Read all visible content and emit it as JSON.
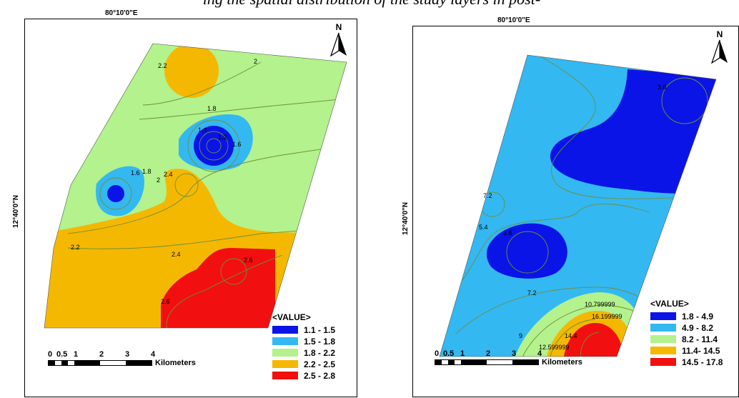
{
  "caption": "ing the spatial distribution of the study layers in post-",
  "maps": [
    {
      "top_coordinate": "80°10'0\"E",
      "side_coordinate": "12°40'0\"N",
      "north_label": "N",
      "legend": {
        "title": "<VALUE>",
        "classes": [
          {
            "label": "1.1 - 1.5",
            "color": "#0a14e6"
          },
          {
            "label": "1.5 - 1.8",
            "color": "#33b8f2"
          },
          {
            "label": "1.8 - 2.2",
            "color": "#b3f28c"
          },
          {
            "label": "2.2 - 2.5",
            "color": "#f5b800"
          },
          {
            "label": "2.5 - 2.8",
            "color": "#f20f0f"
          }
        ]
      },
      "contour_labels": [
        "2.2",
        "2",
        "1.8",
        "1.4",
        "1.2",
        "1.6",
        "1.6",
        "1.8",
        "2",
        "2.4",
        "2.2",
        "2.4",
        "2.6",
        "2.6"
      ],
      "scalebar": {
        "ticks": [
          "0",
          "0.5",
          "1",
          "2",
          "3",
          "4"
        ],
        "unit": "Kilometers"
      }
    },
    {
      "top_coordinate": "80°10'0\"E",
      "side_coordinate": "12°40'0\"N",
      "north_label": "N",
      "legend": {
        "title": "<VALUE>",
        "classes": [
          {
            "label": "1.8 - 4.9",
            "color": "#0a14e6"
          },
          {
            "label": "4.9 - 8.2",
            "color": "#33b8f2"
          },
          {
            "label": "8.2 - 11.4",
            "color": "#b3f28c"
          },
          {
            "label": "11.4- 14.5",
            "color": "#f5b800"
          },
          {
            "label": "14.5 - 17.8",
            "color": "#f20f0f"
          }
        ]
      },
      "contour_labels": [
        "3.6",
        "7.2",
        "5.4",
        "3.6",
        "7.2",
        "10.799999",
        "16.199999",
        "9",
        "12.599999",
        "14.4"
      ],
      "scalebar": {
        "ticks": [
          "0",
          "0.5",
          "1",
          "2",
          "3",
          "4"
        ],
        "unit": "Kilometers"
      }
    }
  ]
}
